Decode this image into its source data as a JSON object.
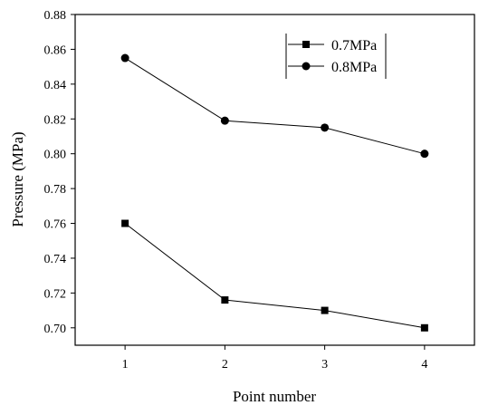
{
  "chart_data": {
    "type": "line",
    "xlabel": "Point number",
    "ylabel": "Pressure (MPa)",
    "x": [
      1,
      2,
      3,
      4
    ],
    "xlim": [
      0.5,
      4.5
    ],
    "ylim": [
      0.69,
      0.88
    ],
    "x_ticks": [
      "1",
      "2",
      "3",
      "4"
    ],
    "y_ticks": [
      "0.70",
      "0.72",
      "0.74",
      "0.76",
      "0.78",
      "0.80",
      "0.82",
      "0.84",
      "0.86",
      "0.88"
    ],
    "grid": false,
    "legend_position": "top-right",
    "series": [
      {
        "name": "0.7MPa",
        "marker": "square",
        "color": "#000000",
        "values": [
          0.76,
          0.716,
          0.71,
          0.7
        ]
      },
      {
        "name": "0.8MPa",
        "marker": "circle",
        "color": "#000000",
        "values": [
          0.855,
          0.819,
          0.815,
          0.8
        ]
      }
    ]
  }
}
